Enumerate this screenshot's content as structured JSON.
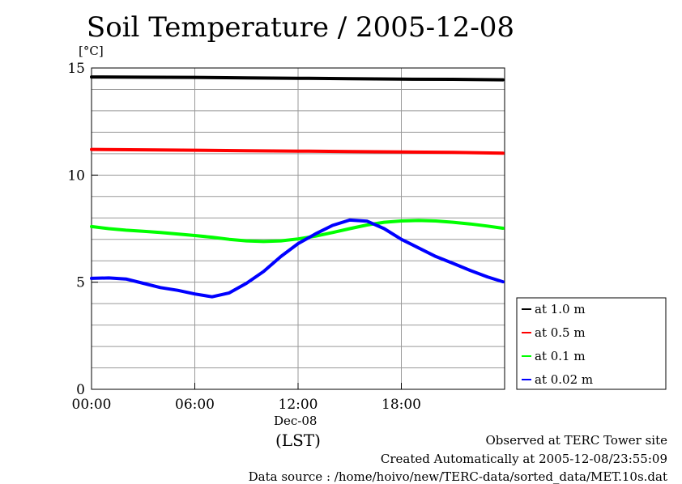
{
  "chart_data": {
    "type": "line",
    "title": "Soil Temperature / 2005-12-08",
    "ylabel": "[°C]",
    "xlabel": "(LST)",
    "x_date_label": "Dec-08",
    "ylim": [
      0,
      15
    ],
    "xlim_hours": [
      0,
      24
    ],
    "y_ticks": [
      0,
      5,
      10,
      15
    ],
    "y_tick_labels": [
      "0",
      "5",
      "10",
      "15"
    ],
    "x_ticks_hours": [
      0,
      6,
      12,
      18
    ],
    "x_tick_labels": [
      "00:00",
      "06:00",
      "12:00",
      "18:00"
    ],
    "grid": true,
    "legend_position": "right",
    "series": [
      {
        "name": "at 1.0 m",
        "color": "#000000",
        "x": [
          0,
          3,
          6,
          9,
          12,
          15,
          18,
          21,
          23.9
        ],
        "values": [
          14.58,
          14.57,
          14.56,
          14.54,
          14.52,
          14.5,
          14.48,
          14.47,
          14.45
        ]
      },
      {
        "name": "at 0.5 m",
        "color": "#ff0000",
        "x": [
          0,
          3,
          6,
          9,
          12,
          15,
          18,
          21,
          23.9
        ],
        "values": [
          11.2,
          11.18,
          11.16,
          11.14,
          11.12,
          11.1,
          11.08,
          11.06,
          11.02
        ]
      },
      {
        "name": "at 0.1 m",
        "color": "#00ff00",
        "x": [
          0,
          1,
          2,
          3,
          4,
          5,
          6,
          7,
          8,
          9,
          10,
          11,
          12,
          13,
          14,
          15,
          16,
          17,
          18,
          19,
          20,
          21,
          22,
          23,
          23.9
        ],
        "values": [
          7.6,
          7.5,
          7.43,
          7.38,
          7.32,
          7.25,
          7.18,
          7.1,
          7.0,
          6.93,
          6.9,
          6.93,
          7.02,
          7.15,
          7.32,
          7.5,
          7.67,
          7.8,
          7.86,
          7.88,
          7.86,
          7.8,
          7.72,
          7.62,
          7.52
        ]
      },
      {
        "name": "at 0.02 m",
        "color": "#0000ff",
        "x": [
          0,
          1,
          2,
          3,
          4,
          5,
          6,
          7,
          8,
          9,
          10,
          11,
          12,
          13,
          14,
          15,
          16,
          17,
          18,
          19,
          20,
          21,
          22,
          23,
          23.9
        ],
        "values": [
          5.18,
          5.2,
          5.15,
          4.95,
          4.75,
          4.62,
          4.45,
          4.32,
          4.5,
          4.95,
          5.5,
          6.2,
          6.8,
          7.25,
          7.65,
          7.9,
          7.85,
          7.5,
          7.0,
          6.6,
          6.2,
          5.88,
          5.55,
          5.25,
          5.02
        ]
      }
    ]
  },
  "footer": {
    "line1": "Observed at TERC Tower site",
    "line2": "Created Automatically at 2005-12-08/23:55:09",
    "line3": "Data source : /home/hoivo/new/TERC-data/sorted_data/MET.10s.dat"
  }
}
